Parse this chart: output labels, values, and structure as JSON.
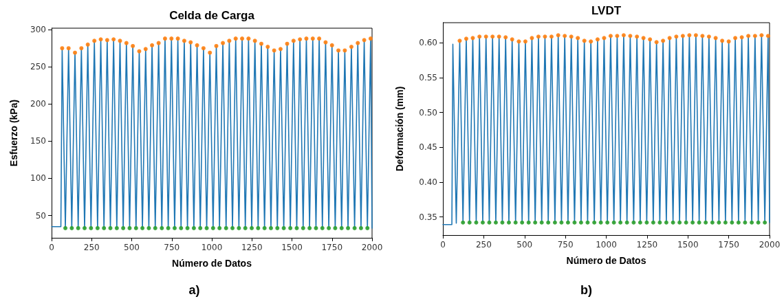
{
  "chart_data": [
    {
      "type": "line",
      "title": "Celda de Carga",
      "xlabel": "Número de Datos",
      "ylabel": "Esfuerzo (kPa)",
      "annotations": [
        "a)"
      ],
      "xlim": [
        0,
        2000
      ],
      "xticks": [
        0,
        250,
        500,
        750,
        1000,
        1250,
        1500,
        1750,
        2000
      ],
      "ylim": [
        20,
        302
      ],
      "yticks": [
        50,
        100,
        150,
        200,
        250,
        300
      ],
      "grid": false,
      "series": [
        {
          "type": "line",
          "color": "#1f77b4",
          "marker": "none",
          "line_style": "solid",
          "x": [
            0,
            58,
            66,
            86,
            106,
            126,
            146,
            166,
            186,
            206,
            226,
            246,
            267,
            287,
            307,
            327,
            347,
            367,
            387,
            407,
            427,
            447,
            467,
            487,
            507,
            527,
            547,
            567,
            587,
            607,
            627,
            647,
            668,
            688,
            708,
            728,
            748,
            768,
            788,
            808,
            828,
            848,
            868,
            888,
            908,
            928,
            948,
            968,
            988,
            1008,
            1028,
            1048,
            1069,
            1089,
            1109,
            1129,
            1149,
            1169,
            1189,
            1209,
            1229,
            1249,
            1269,
            1289,
            1309,
            1329,
            1349,
            1369,
            1389,
            1409,
            1429,
            1449,
            1470,
            1490,
            1510,
            1530,
            1550,
            1570,
            1590,
            1610,
            1630,
            1650,
            1670,
            1690,
            1710,
            1730,
            1750,
            1770,
            1790,
            1810,
            1830,
            1850,
            1871,
            1891,
            1911,
            1931,
            1951,
            1971,
            1991,
            2000
          ],
          "values": [
            35,
            35,
            275,
            33,
            275,
            33,
            269,
            33,
            275,
            33,
            280,
            33,
            285,
            33,
            287,
            33,
            286,
            33,
            287,
            33,
            285,
            33,
            282,
            33,
            278,
            33,
            271,
            33,
            274,
            33,
            279,
            33,
            282,
            33,
            288,
            33,
            288,
            33,
            288,
            33,
            285,
            33,
            283,
            33,
            279,
            33,
            275,
            33,
            269,
            33,
            278,
            33,
            282,
            33,
            285,
            33,
            288,
            33,
            288,
            33,
            288,
            33,
            285,
            33,
            281,
            33,
            277,
            33,
            272,
            33,
            274,
            33,
            281,
            33,
            285,
            33,
            287,
            33,
            288,
            33,
            288,
            33,
            288,
            33,
            283,
            33,
            279,
            33,
            272,
            33,
            272,
            33,
            277,
            33,
            282,
            33,
            286,
            33,
            288,
            33
          ]
        },
        {
          "type": "scatter",
          "color": "#ff7f0e",
          "marker": "circle",
          "x": [
            66,
            106,
            146,
            186,
            226,
            267,
            307,
            347,
            387,
            427,
            467,
            507,
            547,
            587,
            627,
            668,
            708,
            748,
            788,
            828,
            868,
            908,
            948,
            988,
            1028,
            1069,
            1109,
            1149,
            1189,
            1229,
            1269,
            1309,
            1349,
            1389,
            1429,
            1470,
            1510,
            1550,
            1590,
            1630,
            1670,
            1710,
            1750,
            1790,
            1830,
            1871,
            1911,
            1951,
            1991
          ],
          "values": [
            275,
            275,
            269,
            275,
            280,
            285,
            287,
            286,
            287,
            285,
            282,
            278,
            271,
            274,
            279,
            282,
            288,
            288,
            288,
            285,
            283,
            279,
            275,
            269,
            278,
            282,
            285,
            288,
            288,
            288,
            285,
            281,
            277,
            272,
            274,
            281,
            285,
            287,
            288,
            288,
            288,
            283,
            279,
            272,
            272,
            277,
            282,
            286,
            288
          ]
        },
        {
          "type": "scatter",
          "color": "#2ca02c",
          "marker": "circle",
          "x": [
            86,
            126,
            166,
            206,
            246,
            287,
            327,
            367,
            407,
            447,
            487,
            527,
            567,
            607,
            647,
            688,
            728,
            768,
            808,
            848,
            888,
            928,
            968,
            1008,
            1048,
            1089,
            1129,
            1169,
            1209,
            1249,
            1289,
            1329,
            1369,
            1409,
            1449,
            1490,
            1530,
            1570,
            1610,
            1650,
            1690,
            1730,
            1770,
            1810,
            1850,
            1891,
            1931,
            1971
          ],
          "values": [
            33,
            33,
            33,
            33,
            33,
            33,
            33,
            33,
            33,
            33,
            33,
            33,
            33,
            33,
            33,
            33,
            33,
            33,
            33,
            33,
            33,
            33,
            33,
            33,
            33,
            33,
            33,
            33,
            33,
            33,
            33,
            33,
            33,
            33,
            33,
            33,
            33,
            33,
            33,
            33,
            33,
            33,
            33,
            33,
            33,
            33,
            33,
            33
          ]
        }
      ]
    },
    {
      "type": "line",
      "title": "LVDT",
      "xlabel": "Número de Datos",
      "ylabel": "Deformación (mm)",
      "annotations": [
        "b)"
      ],
      "xlim": [
        0,
        2000
      ],
      "xticks": [
        0,
        250,
        500,
        750,
        1000,
        1250,
        1500,
        1750,
        2000
      ],
      "ylim": [
        0.324,
        0.629
      ],
      "yticks": [
        0.35,
        {
          "value": 0.4,
          "label": "0.40"
        },
        0.45,
        {
          "value": 0.5,
          "label": "0.50"
        },
        0.55,
        {
          "value": 0.6,
          "label": "0.60"
        }
      ],
      "grid": false,
      "series": [
        {
          "type": "line",
          "color": "#1f77b4",
          "marker": "none",
          "line_style": "solid",
          "x": [
            0,
            55,
            61,
            82,
            103,
            123,
            143,
            163,
            183,
            204,
            224,
            244,
            264,
            284,
            304,
            324,
            344,
            364,
            384,
            404,
            424,
            445,
            465,
            485,
            505,
            525,
            545,
            565,
            585,
            605,
            625,
            645,
            665,
            686,
            706,
            726,
            746,
            766,
            786,
            806,
            826,
            846,
            866,
            886,
            906,
            927,
            947,
            967,
            987,
            1007,
            1027,
            1047,
            1067,
            1087,
            1107,
            1127,
            1147,
            1168,
            1188,
            1208,
            1228,
            1248,
            1268,
            1288,
            1308,
            1328,
            1348,
            1368,
            1388,
            1409,
            1429,
            1449,
            1469,
            1489,
            1509,
            1529,
            1549,
            1569,
            1589,
            1609,
            1629,
            1650,
            1670,
            1690,
            1710,
            1730,
            1750,
            1770,
            1790,
            1810,
            1830,
            1850,
            1870,
            1891,
            1911,
            1931,
            1951,
            1971,
            1991,
            2000
          ],
          "values": [
            0.339,
            0.339,
            0.598,
            0.341,
            0.603,
            0.342,
            0.606,
            0.342,
            0.607,
            0.342,
            0.609,
            0.342,
            0.609,
            0.342,
            0.609,
            0.342,
            0.609,
            0.342,
            0.608,
            0.342,
            0.605,
            0.342,
            0.602,
            0.342,
            0.602,
            0.342,
            0.607,
            0.342,
            0.609,
            0.342,
            0.609,
            0.342,
            0.609,
            0.342,
            0.611,
            0.342,
            0.61,
            0.342,
            0.609,
            0.342,
            0.607,
            0.342,
            0.603,
            0.342,
            0.602,
            0.342,
            0.605,
            0.342,
            0.607,
            0.342,
            0.61,
            0.342,
            0.61,
            0.342,
            0.611,
            0.342,
            0.61,
            0.342,
            0.609,
            0.342,
            0.607,
            0.342,
            0.605,
            0.342,
            0.601,
            0.342,
            0.603,
            0.342,
            0.607,
            0.342,
            0.609,
            0.342,
            0.61,
            0.342,
            0.611,
            0.342,
            0.611,
            0.342,
            0.61,
            0.342,
            0.609,
            0.342,
            0.607,
            0.342,
            0.603,
            0.342,
            0.602,
            0.342,
            0.607,
            0.342,
            0.608,
            0.342,
            0.61,
            0.342,
            0.61,
            0.342,
            0.611,
            0.342,
            0.61,
            0.342
          ]
        },
        {
          "type": "scatter",
          "color": "#ff7f0e",
          "marker": "circle",
          "x": [
            103,
            143,
            183,
            224,
            264,
            304,
            344,
            384,
            424,
            465,
            505,
            545,
            585,
            625,
            665,
            706,
            746,
            786,
            826,
            866,
            906,
            947,
            987,
            1027,
            1067,
            1107,
            1147,
            1188,
            1228,
            1268,
            1308,
            1348,
            1388,
            1429,
            1469,
            1509,
            1549,
            1589,
            1629,
            1670,
            1710,
            1750,
            1790,
            1830,
            1870,
            1911,
            1951,
            1991
          ],
          "values": [
            0.603,
            0.606,
            0.607,
            0.609,
            0.609,
            0.609,
            0.609,
            0.608,
            0.605,
            0.602,
            0.602,
            0.607,
            0.609,
            0.609,
            0.609,
            0.611,
            0.61,
            0.609,
            0.607,
            0.603,
            0.602,
            0.605,
            0.607,
            0.61,
            0.61,
            0.611,
            0.61,
            0.609,
            0.607,
            0.605,
            0.601,
            0.603,
            0.607,
            0.609,
            0.61,
            0.611,
            0.611,
            0.61,
            0.609,
            0.607,
            0.603,
            0.602,
            0.607,
            0.608,
            0.61,
            0.61,
            0.611,
            0.61
          ]
        },
        {
          "type": "scatter",
          "color": "#2ca02c",
          "marker": "circle",
          "x": [
            123,
            163,
            204,
            244,
            284,
            324,
            364,
            404,
            445,
            485,
            525,
            565,
            605,
            645,
            686,
            726,
            766,
            806,
            846,
            886,
            927,
            967,
            1007,
            1047,
            1087,
            1127,
            1168,
            1208,
            1248,
            1288,
            1328,
            1368,
            1409,
            1449,
            1489,
            1529,
            1569,
            1609,
            1650,
            1690,
            1730,
            1770,
            1810,
            1850,
            1891,
            1931,
            1971
          ],
          "values": [
            0.342,
            0.342,
            0.342,
            0.342,
            0.342,
            0.342,
            0.342,
            0.342,
            0.342,
            0.342,
            0.342,
            0.342,
            0.342,
            0.342,
            0.342,
            0.342,
            0.342,
            0.342,
            0.342,
            0.342,
            0.342,
            0.342,
            0.342,
            0.342,
            0.342,
            0.342,
            0.342,
            0.342,
            0.342,
            0.342,
            0.342,
            0.342,
            0.342,
            0.342,
            0.342,
            0.342,
            0.342,
            0.342,
            0.342,
            0.342,
            0.342,
            0.342,
            0.342,
            0.342,
            0.342,
            0.342,
            0.342
          ]
        }
      ]
    }
  ]
}
